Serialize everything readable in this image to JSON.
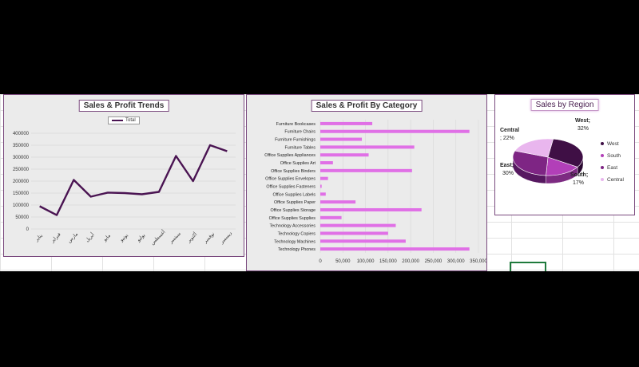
{
  "colors": {
    "line": "#4a1452",
    "bar": "#e070e6",
    "pie_west": "#3f0f45",
    "pie_south": "#b23fb8",
    "pie_east": "#7e2584",
    "pie_central": "#e9b6ee"
  },
  "chart_data": [
    {
      "type": "line",
      "title": "Sales & Profit Trends",
      "categories": [
        "يناير",
        "فبراير",
        "مارس",
        "أبريل",
        "مايو",
        "يونيو",
        "يوليو",
        "أغسطس",
        "سبتمبر",
        "أكتوبر",
        "نوفمبر",
        "ديسمبر"
      ],
      "series": [
        {
          "name": "Total",
          "values": [
            95000,
            58000,
            205000,
            135000,
            152000,
            150000,
            145000,
            155000,
            305000,
            200000,
            350000,
            325000
          ]
        }
      ],
      "ylim": [
        0,
        400000
      ],
      "yticks": [
        "0",
        "50000",
        "100000",
        "150000",
        "200000",
        "250000",
        "300000",
        "350000",
        "400000"
      ],
      "grid": true,
      "legend": "top"
    },
    {
      "type": "bar",
      "orientation": "horizontal",
      "title": "Sales & Profit By Category",
      "categories": [
        "Furniture Bookcases",
        "Furniture Chairs",
        "Furniture Furnishings",
        "Furniture Tables",
        "Office Supplies Appliances",
        "Office Supplies Art",
        "Office Supplies Binders",
        "Office Supplies Envelopes",
        "Office Supplies Fasteners",
        "Office Supplies Labels",
        "Office Supplies Paper",
        "Office Supplies Storage",
        "Office Supplies Supplies",
        "Technology Accessories",
        "Technology Copiers",
        "Technology Machines",
        "Technology Phones"
      ],
      "values": [
        115000,
        330000,
        92000,
        208000,
        107000,
        28000,
        203000,
        17000,
        3000,
        12000,
        78000,
        224000,
        47000,
        167000,
        150000,
        189000,
        330000
      ],
      "xlim": [
        0,
        350000
      ],
      "xticks": [
        "0",
        "50,000",
        "100,000",
        "150,000",
        "200,000",
        "250,000",
        "300,000",
        "350,000"
      ],
      "grid": true
    },
    {
      "type": "pie",
      "title": "Sales by Region",
      "slices": [
        {
          "name": "West",
          "value": 32,
          "label": "West;",
          "pct": "32%"
        },
        {
          "name": "South",
          "value": 17,
          "label": "South;",
          "pct": "17%"
        },
        {
          "name": "East",
          "value": 30,
          "label": "East;",
          "pct": "30%"
        },
        {
          "name": "Central",
          "value": 22,
          "label": "Central",
          "pct": "; 22%"
        }
      ],
      "legend": "right"
    }
  ]
}
